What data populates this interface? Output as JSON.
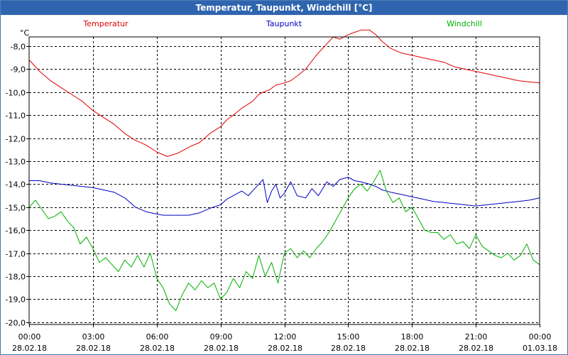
{
  "window": {
    "title": "Temperatur, Taupunkt, Windchill [°C]"
  },
  "colors": {
    "temperatur": "#e00000",
    "taupunkt": "#0000c0",
    "windchill": "#00b000"
  },
  "chart_data": {
    "type": "line",
    "title": "Temperatur, Taupunkt, Windchill [°C]",
    "ylabel": "°C",
    "ylim": [
      -20.0,
      -7.0
    ],
    "yticks": [
      "-8,0",
      "-9,0",
      "-10,0",
      "-11,0",
      "-12,0",
      "-13,0",
      "-14,0",
      "-15,0",
      "-16,0",
      "-17,0",
      "-18,0",
      "-19,0",
      "-20,0"
    ],
    "yticks_values": [
      -8,
      -9,
      -10,
      -11,
      -12,
      -13,
      -14,
      -15,
      -16,
      -17,
      -18,
      -19,
      -20
    ],
    "xlim": [
      0,
      24
    ],
    "xticks": [
      {
        "time": "00:00",
        "date": "28.02.18"
      },
      {
        "time": "03:00",
        "date": "28.02.18"
      },
      {
        "time": "06:00",
        "date": "28.02.18"
      },
      {
        "time": "09:00",
        "date": "28.02.18"
      },
      {
        "time": "12:00",
        "date": "28.02.18"
      },
      {
        "time": "15:00",
        "date": "28.02.18"
      },
      {
        "time": "18:00",
        "date": "28.02.18"
      },
      {
        "time": "21:00",
        "date": "28.02.18"
      },
      {
        "time": "00:00",
        "date": "01.03.18"
      }
    ],
    "grid": true,
    "legend": [
      "Temperatur",
      "Taupunkt",
      "Windchill"
    ],
    "series": [
      {
        "name": "Temperatur",
        "x": [
          0,
          0.5,
          1,
          1.5,
          2,
          2.5,
          3,
          3.5,
          4,
          4.5,
          5,
          5.5,
          6,
          6.5,
          7,
          7.3,
          7.6,
          8,
          8.5,
          9,
          9.3,
          9.6,
          10,
          10.5,
          10.8,
          11,
          11.3,
          11.6,
          12,
          12.3,
          12.6,
          13,
          13.5,
          14,
          14.3,
          14.6,
          15,
          15.3,
          15.6,
          16,
          16.3,
          16.6,
          17,
          17.5,
          18,
          18.5,
          19,
          19.5,
          20,
          20.5,
          21,
          21.5,
          22,
          22.5,
          23,
          23.5,
          24
        ],
        "values": [
          -8.6,
          -9.1,
          -9.5,
          -9.8,
          -10.1,
          -10.4,
          -10.8,
          -11.1,
          -11.4,
          -11.8,
          -12.1,
          -12.3,
          -12.6,
          -12.8,
          -12.65,
          -12.5,
          -12.35,
          -12.2,
          -11.8,
          -11.5,
          -11.2,
          -11.0,
          -10.7,
          -10.4,
          -10.1,
          -10.0,
          -9.9,
          -9.7,
          -9.6,
          -9.5,
          -9.3,
          -9.0,
          -8.4,
          -7.9,
          -7.6,
          -7.7,
          -7.5,
          -7.4,
          -7.3,
          -7.3,
          -7.5,
          -7.8,
          -8.1,
          -8.3,
          -8.4,
          -8.5,
          -8.6,
          -8.7,
          -8.9,
          -9.0,
          -9.1,
          -9.2,
          -9.3,
          -9.4,
          -9.5,
          -9.55,
          -9.6
        ]
      },
      {
        "name": "Taupunkt",
        "x": [
          0,
          0.5,
          1,
          1.5,
          2,
          2.5,
          3,
          3.5,
          4,
          4.5,
          5,
          5.5,
          6,
          6.3,
          6.6,
          7,
          7.5,
          8,
          8.5,
          9,
          9.3,
          9.6,
          10,
          10.3,
          10.6,
          11,
          11.2,
          11.4,
          11.6,
          11.8,
          12,
          12.3,
          12.6,
          13,
          13.3,
          13.6,
          14,
          14.3,
          14.6,
          15,
          15.3,
          15.6,
          16,
          16.3,
          16.6,
          17,
          17.5,
          18,
          18.5,
          19,
          19.5,
          20,
          20.5,
          21,
          21.5,
          22,
          22.5,
          23,
          23.5,
          24
        ],
        "values": [
          -13.85,
          -13.85,
          -13.95,
          -14.0,
          -14.05,
          -14.1,
          -14.15,
          -14.25,
          -14.35,
          -14.6,
          -15.0,
          -15.2,
          -15.3,
          -15.35,
          -15.35,
          -15.35,
          -15.35,
          -15.25,
          -15.05,
          -14.9,
          -14.65,
          -14.5,
          -14.3,
          -14.5,
          -14.2,
          -13.8,
          -14.8,
          -14.3,
          -14.0,
          -14.6,
          -14.4,
          -13.9,
          -14.5,
          -14.6,
          -14.2,
          -14.5,
          -13.9,
          -14.1,
          -13.8,
          -13.7,
          -13.85,
          -13.9,
          -14.0,
          -14.1,
          -14.25,
          -14.35,
          -14.45,
          -14.55,
          -14.65,
          -14.75,
          -14.8,
          -14.85,
          -14.9,
          -14.95,
          -14.9,
          -14.85,
          -14.8,
          -14.75,
          -14.7,
          -14.6
        ]
      },
      {
        "name": "Windchill",
        "x": [
          0,
          0.3,
          0.6,
          0.9,
          1.2,
          1.5,
          1.8,
          2.1,
          2.4,
          2.7,
          3.0,
          3.3,
          3.6,
          3.9,
          4.2,
          4.5,
          4.8,
          5.1,
          5.4,
          5.7,
          6.0,
          6.3,
          6.6,
          6.9,
          7.2,
          7.5,
          7.8,
          8.1,
          8.4,
          8.7,
          9.0,
          9.3,
          9.6,
          9.9,
          10.2,
          10.5,
          10.8,
          11.1,
          11.4,
          11.7,
          12.0,
          12.3,
          12.6,
          12.9,
          13.2,
          13.5,
          13.8,
          14.1,
          14.4,
          14.7,
          15.0,
          15.3,
          15.6,
          15.9,
          16.2,
          16.5,
          16.8,
          17.1,
          17.4,
          17.7,
          18.0,
          18.3,
          18.6,
          18.9,
          19.2,
          19.5,
          19.8,
          20.1,
          20.4,
          20.7,
          21.0,
          21.3,
          21.6,
          21.9,
          22.2,
          22.5,
          22.8,
          23.1,
          23.4,
          23.7,
          24.0
        ],
        "values": [
          -15.0,
          -14.7,
          -15.1,
          -15.5,
          -15.4,
          -15.2,
          -15.6,
          -15.9,
          -16.6,
          -16.3,
          -16.8,
          -17.4,
          -17.2,
          -17.5,
          -17.8,
          -17.3,
          -17.6,
          -17.1,
          -17.6,
          -17.0,
          -18.1,
          -18.5,
          -19.2,
          -19.5,
          -18.8,
          -18.3,
          -18.6,
          -18.2,
          -18.5,
          -18.3,
          -19.0,
          -18.7,
          -18.1,
          -18.5,
          -17.8,
          -18.1,
          -17.1,
          -18.0,
          -17.4,
          -18.3,
          -17.0,
          -16.8,
          -17.2,
          -16.9,
          -17.2,
          -16.8,
          -16.5,
          -16.1,
          -15.6,
          -15.1,
          -14.6,
          -14.2,
          -14.0,
          -14.3,
          -13.9,
          -13.4,
          -14.3,
          -14.8,
          -14.6,
          -15.2,
          -15.0,
          -15.5,
          -16.0,
          -16.1,
          -16.1,
          -16.4,
          -16.2,
          -16.6,
          -16.5,
          -16.8,
          -16.2,
          -16.7,
          -16.9,
          -17.1,
          -17.2,
          -17.0,
          -17.3,
          -17.1,
          -16.6,
          -17.3,
          -17.5
        ]
      }
    ]
  }
}
